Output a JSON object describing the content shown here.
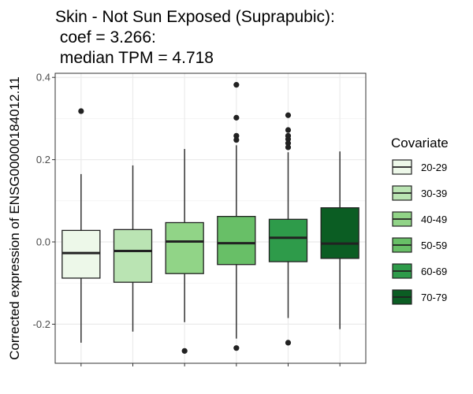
{
  "chart_data": {
    "type": "box",
    "title_lines": [
      "Skin - Not Sun Exposed (Suprapubic):",
      " coef = 3.266:",
      " median TPM = 4.718"
    ],
    "xlabel": "",
    "ylabel": "Corrected expression of ENSG00000184012.11",
    "ylim": [
      -0.295,
      0.41
    ],
    "yticks": [
      -0.2,
      0.0,
      0.2,
      0.4
    ],
    "ytick_labels": [
      "-0.2",
      "0.0",
      "0.2",
      "0.4"
    ],
    "grid": true,
    "legend": {
      "title": "Covariate",
      "placement": "right"
    },
    "categories": [
      "20-29",
      "30-39",
      "40-49",
      "50-59",
      "60-69",
      "70-79"
    ],
    "colors": [
      "#edf8e9",
      "#c7e9c0",
      "#a1d99b",
      "#74c476",
      "#31a354",
      "#006d2c"
    ],
    "fills": [
      "#edf8e9",
      "#bae4b3",
      "#91d487",
      "#68bf67",
      "#2e9b4a",
      "#0b5d23"
    ],
    "boxes": [
      {
        "min": -0.245,
        "q1": -0.088,
        "median": -0.027,
        "q3": 0.028,
        "max": 0.165,
        "outliers": [
          0.318
        ]
      },
      {
        "min": -0.218,
        "q1": -0.098,
        "median": -0.022,
        "q3": 0.03,
        "max": 0.186,
        "outliers": []
      },
      {
        "min": -0.195,
        "q1": -0.077,
        "median": 0.001,
        "q3": 0.047,
        "max": 0.226,
        "outliers": [
          -0.265
        ]
      },
      {
        "min": -0.235,
        "q1": -0.055,
        "median": -0.003,
        "q3": 0.062,
        "max": 0.235,
        "outliers": [
          0.382,
          0.302,
          0.258,
          0.248,
          -0.258
        ]
      },
      {
        "min": -0.185,
        "q1": -0.048,
        "median": 0.01,
        "q3": 0.055,
        "max": 0.218,
        "outliers": [
          0.308,
          0.272,
          0.258,
          0.25,
          0.24,
          0.23,
          -0.245
        ]
      },
      {
        "min": -0.212,
        "q1": -0.04,
        "median": -0.004,
        "q3": 0.083,
        "max": 0.22,
        "outliers": []
      }
    ]
  }
}
